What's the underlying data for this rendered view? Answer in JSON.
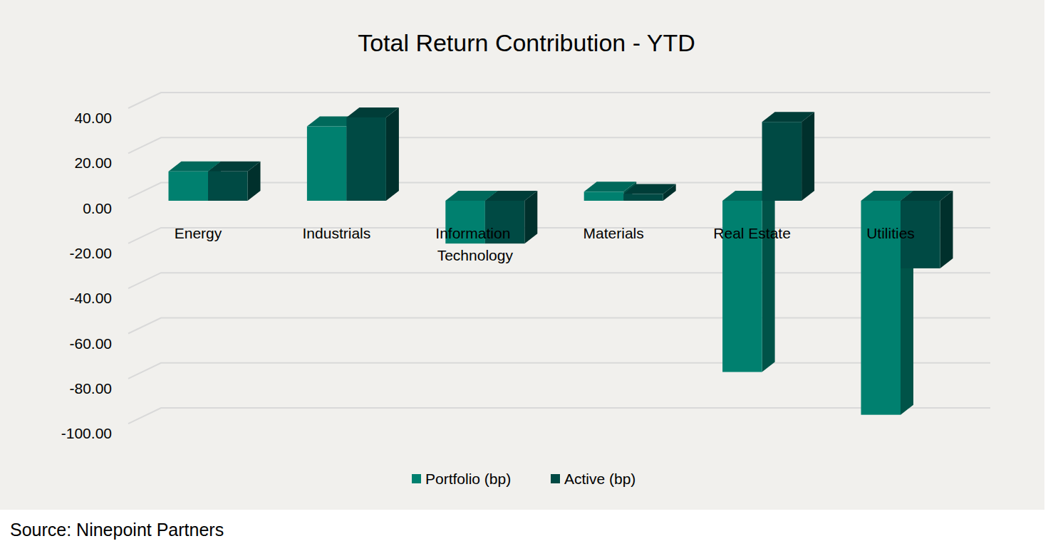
{
  "chart_data": {
    "type": "bar",
    "title": "Total Return Contribution - YTD",
    "source": "Source: Ninepoint Partners",
    "categories": [
      "Energy",
      "Industrials",
      "Information Technology",
      "Materials",
      "Real Estate",
      "Utilities"
    ],
    "series": [
      {
        "name": "Portfolio (bp)",
        "color": "#00806f",
        "values": [
          13,
          33,
          -19,
          4,
          -76,
          -95
        ]
      },
      {
        "name": "Active (bp)",
        "color": "#004a44",
        "values": [
          13,
          37,
          -19,
          3,
          35,
          -30
        ]
      }
    ],
    "ylim": [
      -100,
      40
    ],
    "yticks": [
      {
        "value": -100,
        "label": "-100.00"
      },
      {
        "value": -80,
        "label": "-80.00"
      },
      {
        "value": -60,
        "label": "-60.00"
      },
      {
        "value": -40,
        "label": "-40.00"
      },
      {
        "value": -20,
        "label": "-20.00"
      },
      {
        "value": 0,
        "label": "0.00"
      },
      {
        "value": 20,
        "label": "20.00"
      },
      {
        "value": 40,
        "label": "40.00"
      }
    ],
    "grid": true,
    "legend": "bottom"
  }
}
